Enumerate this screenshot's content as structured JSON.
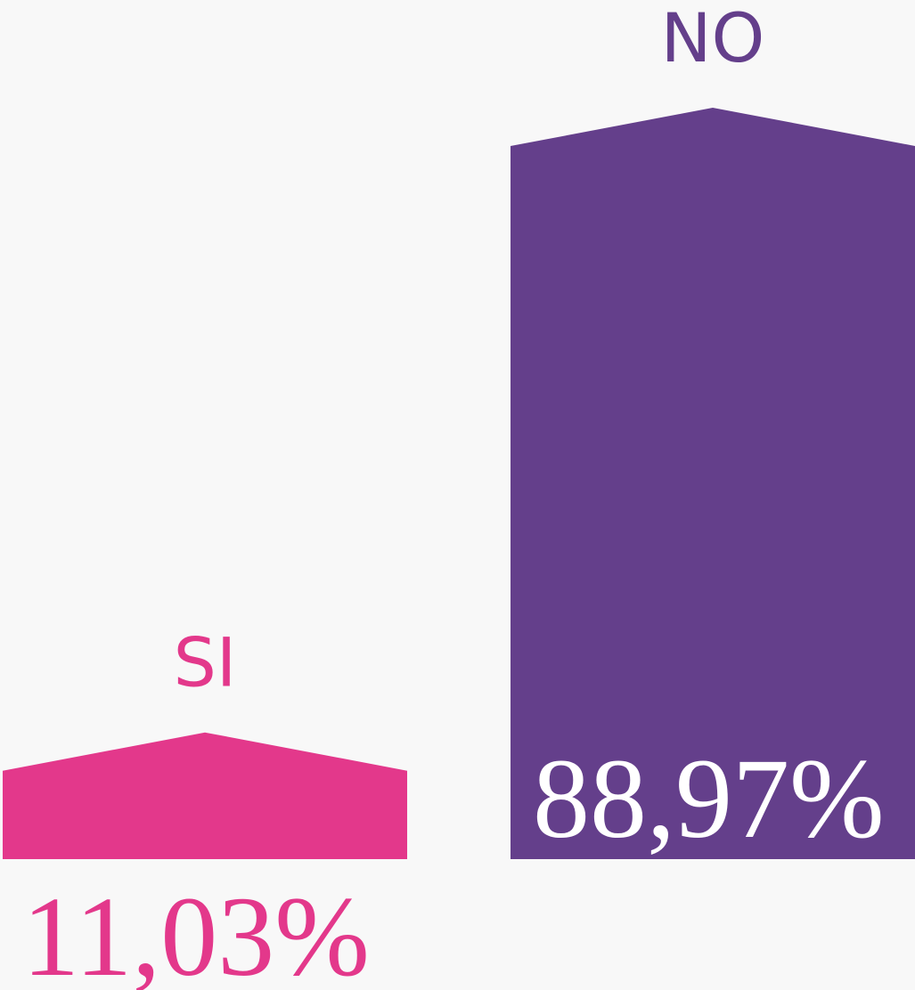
{
  "chart_data": {
    "type": "bar",
    "categories": [
      "SI",
      "NO"
    ],
    "values": [
      11.03,
      88.97
    ],
    "value_labels": [
      "11,03%",
      "88,97%"
    ],
    "colors": [
      "#e3388b",
      "#643f8b"
    ]
  }
}
